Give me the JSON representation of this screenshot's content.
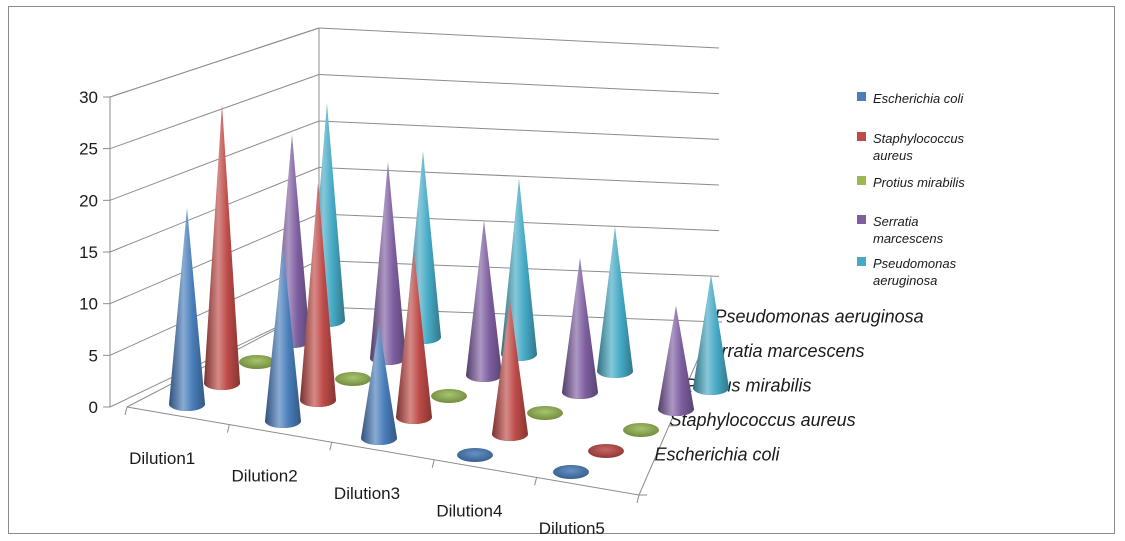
{
  "chart_data": {
    "type": "3d-cone-column",
    "categories": [
      "Dilution1",
      "Dilution2",
      "Dilution3",
      "Dilution4",
      "Dilution5"
    ],
    "series": [
      {
        "name": "Escherichia coli",
        "values": [
          19,
          17,
          11,
          0,
          0
        ],
        "color": "#4a7ebb"
      },
      {
        "name": "Staphylococcus aureus",
        "values": [
          27,
          21,
          16,
          13,
          0
        ],
        "color": "#be4b48"
      },
      {
        "name": "Protius mirabilis",
        "values": [
          0,
          0,
          0,
          0,
          0
        ],
        "color": "#98b954"
      },
      {
        "name": "Serratia marcescens",
        "values": [
          20,
          19,
          15,
          13,
          10
        ],
        "color": "#7d5fa0"
      },
      {
        "name": "Pseudomonas aeruginosa",
        "values": [
          21,
          18,
          17,
          14,
          11
        ],
        "color": "#46aac5"
      }
    ],
    "yticks": [
      0,
      5,
      10,
      15,
      20,
      25,
      30
    ],
    "ylim": [
      0,
      30
    ],
    "grid": true,
    "legend": "right"
  }
}
